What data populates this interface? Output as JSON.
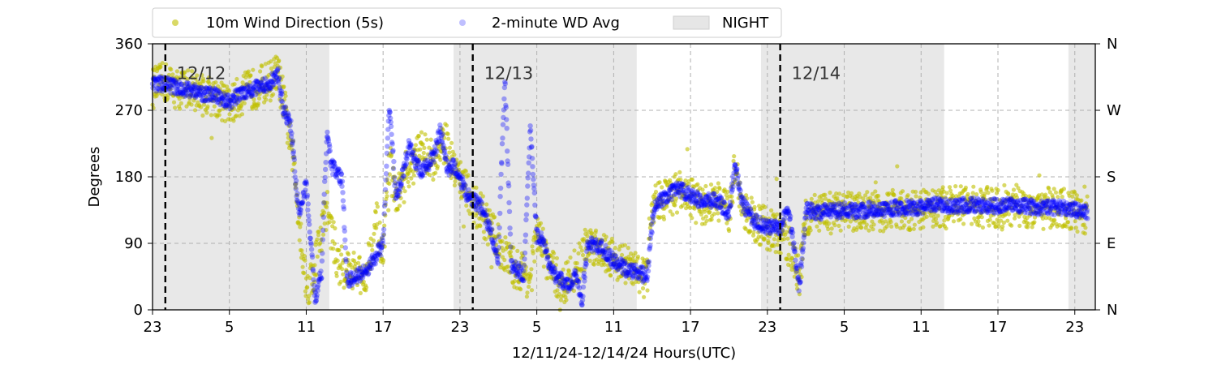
{
  "chart_data": {
    "type": "scatter",
    "xlabel": "12/11/24-12/14/24  Hours(UTC)",
    "ylabel": "Degrees",
    "xlim": [
      23,
      96.6
    ],
    "ylim": [
      0,
      360
    ],
    "x_tick_values": [
      23,
      29,
      35,
      41,
      47,
      53,
      59,
      65,
      71,
      77,
      83,
      89,
      95
    ],
    "x_tick_labels": [
      "23",
      "5",
      "11",
      "17",
      "23",
      "5",
      "11",
      "17",
      "23",
      "5",
      "11",
      "17",
      "23"
    ],
    "y_ticks": [
      0,
      90,
      180,
      270,
      360
    ],
    "y_tick_labels": [
      "0",
      "90",
      "180",
      "270",
      "360"
    ],
    "right_y_ticks": [
      0,
      90,
      180,
      270,
      360
    ],
    "right_y_tick_labels": [
      "N",
      "E",
      "S",
      "W",
      "N"
    ],
    "grid": true,
    "legend_placement": "top-left, above plot",
    "legend": [
      {
        "label": "10m Wind Direction (5s)",
        "color": "#bfbf00",
        "kind": "marker"
      },
      {
        "label": "2-minute WD Avg",
        "color": "#0000ff",
        "kind": "marker-faint"
      },
      {
        "label": "NIGHT",
        "color": "#dcdcdc",
        "kind": "patch"
      }
    ],
    "night_periods": [
      [
        23,
        36.8
      ],
      [
        46.5,
        60.8
      ],
      [
        70.5,
        84.8
      ],
      [
        94.5,
        96.6
      ]
    ],
    "day_markers": [
      {
        "x": 24,
        "label": "12/12"
      },
      {
        "x": 48,
        "label": "12/13"
      },
      {
        "x": 72,
        "label": "12/14"
      }
    ],
    "series": [
      {
        "name": "10m Wind Direction (5s)",
        "color": "#bfbf00",
        "spread": 28,
        "points": [
          [
            23,
            300
          ],
          [
            24,
            308
          ],
          [
            25,
            298
          ],
          [
            26,
            300
          ],
          [
            27,
            290
          ],
          [
            28,
            288
          ],
          [
            29,
            275
          ],
          [
            30,
            292
          ],
          [
            31,
            300
          ],
          [
            32,
            308
          ],
          [
            32.8,
            320
          ],
          [
            33.3,
            275
          ],
          [
            34,
            200
          ],
          [
            35,
            30
          ],
          [
            35.5,
            45
          ],
          [
            36,
            90
          ],
          [
            36.6,
            140
          ],
          [
            37.5,
            60
          ],
          [
            38.5,
            55
          ],
          [
            39.5,
            40
          ],
          [
            40.5,
            120
          ],
          [
            41,
            60
          ],
          [
            41.5,
            200
          ],
          [
            42,
            150
          ],
          [
            43,
            180
          ],
          [
            44,
            220
          ],
          [
            45,
            200
          ],
          [
            46,
            230
          ],
          [
            46.5,
            190
          ],
          [
            47,
            180
          ],
          [
            47.5,
            160
          ],
          [
            48,
            148
          ],
          [
            49,
            120
          ],
          [
            50,
            90
          ],
          [
            51,
            60
          ],
          [
            52,
            50
          ],
          [
            52.5,
            40
          ],
          [
            53,
            105
          ],
          [
            54,
            60
          ],
          [
            55,
            30
          ],
          [
            56,
            55
          ],
          [
            57,
            90
          ],
          [
            58,
            85
          ],
          [
            59,
            70
          ],
          [
            60,
            60
          ],
          [
            61,
            50
          ],
          [
            61.5,
            40
          ],
          [
            62,
            145
          ],
          [
            63,
            150
          ],
          [
            64,
            160
          ],
          [
            65,
            150
          ],
          [
            66,
            140
          ],
          [
            67,
            150
          ],
          [
            68,
            130
          ],
          [
            68.5,
            200
          ],
          [
            69,
            140
          ],
          [
            70,
            120
          ],
          [
            71,
            110
          ],
          [
            72,
            100
          ],
          [
            73,
            80
          ],
          [
            73.5,
            40
          ],
          [
            74,
            130
          ],
          [
            75,
            128
          ],
          [
            76,
            130
          ],
          [
            77,
            132
          ],
          [
            78,
            132
          ],
          [
            79,
            134
          ],
          [
            80,
            133
          ],
          [
            81,
            136
          ],
          [
            82,
            136
          ],
          [
            83,
            134
          ],
          [
            84,
            140
          ],
          [
            85,
            138
          ],
          [
            86,
            140
          ],
          [
            87,
            140
          ],
          [
            88,
            138
          ],
          [
            89,
            140
          ],
          [
            90,
            142
          ],
          [
            91,
            140
          ],
          [
            92,
            136
          ],
          [
            93,
            138
          ],
          [
            94,
            136
          ],
          [
            95,
            134
          ],
          [
            96,
            128
          ]
        ]
      },
      {
        "name": "2-minute WD Avg",
        "color": "#0000ff",
        "spread": 10,
        "points": [
          [
            23,
            305
          ],
          [
            24,
            306
          ],
          [
            25,
            300
          ],
          [
            26,
            298
          ],
          [
            27,
            292
          ],
          [
            28,
            290
          ],
          [
            29,
            280
          ],
          [
            30,
            295
          ],
          [
            31,
            300
          ],
          [
            32,
            305
          ],
          [
            32.8,
            318
          ],
          [
            33.2,
            272
          ],
          [
            33.8,
            250
          ],
          [
            34.4,
            130
          ],
          [
            35,
            170
          ],
          [
            35.7,
            15
          ],
          [
            36.2,
            50
          ],
          [
            36.6,
            240
          ],
          [
            37,
            195
          ],
          [
            37.8,
            175
          ],
          [
            38.2,
            40
          ],
          [
            39,
            45
          ],
          [
            40,
            60
          ],
          [
            41,
            90
          ],
          [
            41.5,
            280
          ],
          [
            42,
            150
          ],
          [
            42.5,
            180
          ],
          [
            43,
            220
          ],
          [
            44,
            185
          ],
          [
            45,
            210
          ],
          [
            45.5,
            245
          ],
          [
            46,
            190
          ],
          [
            46.5,
            195
          ],
          [
            47,
            180
          ],
          [
            47.5,
            155
          ],
          [
            48,
            150
          ],
          [
            48.6,
            140
          ],
          [
            49,
            125
          ],
          [
            49.5,
            100
          ],
          [
            50,
            70
          ],
          [
            50.5,
            320
          ],
          [
            51,
            60
          ],
          [
            52,
            48
          ],
          [
            52.5,
            250
          ],
          [
            53,
            100
          ],
          [
            53.5,
            95
          ],
          [
            54,
            55
          ],
          [
            55,
            38
          ],
          [
            55.5,
            30
          ],
          [
            56,
            50
          ],
          [
            56.5,
            10
          ],
          [
            57,
            90
          ],
          [
            58,
            85
          ],
          [
            59,
            65
          ],
          [
            60,
            55
          ],
          [
            61,
            50
          ],
          [
            61.6,
            45
          ],
          [
            62.2,
            145
          ],
          [
            63,
            150
          ],
          [
            64,
            165
          ],
          [
            65,
            155
          ],
          [
            66,
            145
          ],
          [
            67,
            150
          ],
          [
            68,
            130
          ],
          [
            68.5,
            200
          ],
          [
            69,
            145
          ],
          [
            70,
            120
          ],
          [
            71,
            112
          ],
          [
            72,
            110
          ],
          [
            72.6,
            140
          ],
          [
            73,
            95
          ],
          [
            73.5,
            30
          ],
          [
            74,
            135
          ],
          [
            75,
            132
          ],
          [
            76,
            133
          ],
          [
            77,
            135
          ],
          [
            78,
            134
          ],
          [
            79,
            136
          ],
          [
            80,
            136
          ],
          [
            81,
            138
          ],
          [
            82,
            138
          ],
          [
            83,
            138
          ],
          [
            84,
            142
          ],
          [
            85,
            140
          ],
          [
            86,
            141
          ],
          [
            87,
            142
          ],
          [
            88,
            140
          ],
          [
            89,
            141
          ],
          [
            90,
            142
          ],
          [
            91,
            141
          ],
          [
            92,
            138
          ],
          [
            93,
            139
          ],
          [
            94,
            138
          ],
          [
            95,
            136
          ],
          [
            96,
            132
          ]
        ]
      }
    ]
  }
}
